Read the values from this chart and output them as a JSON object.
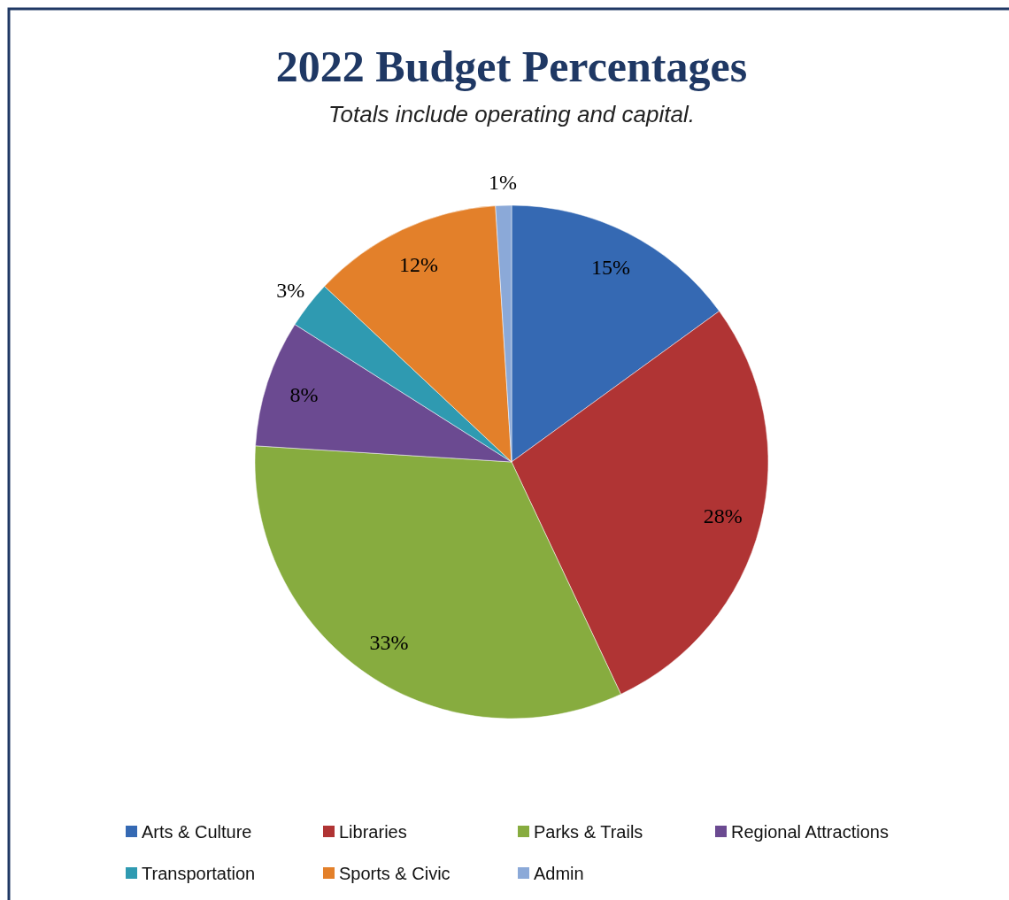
{
  "chart_data": {
    "type": "pie",
    "title": "2022 Budget Percentages",
    "subtitle": "Totals include operating and capital.",
    "categories": [
      "Arts & Culture",
      "Libraries",
      "Parks & Trails",
      "Regional Attractions",
      "Transportation",
      "Sports & Civic",
      "Admin"
    ],
    "values": [
      15,
      28,
      33,
      8,
      3,
      12,
      1
    ],
    "colors": [
      "#3569b3",
      "#b03434",
      "#87ac3f",
      "#6b4a91",
      "#2f9ab1",
      "#e3802a",
      "#8ba9d8"
    ],
    "value_labels": [
      "15%",
      "28%",
      "33%",
      "8%",
      "3%",
      "12%",
      "1%"
    ],
    "legend": "bottom"
  }
}
